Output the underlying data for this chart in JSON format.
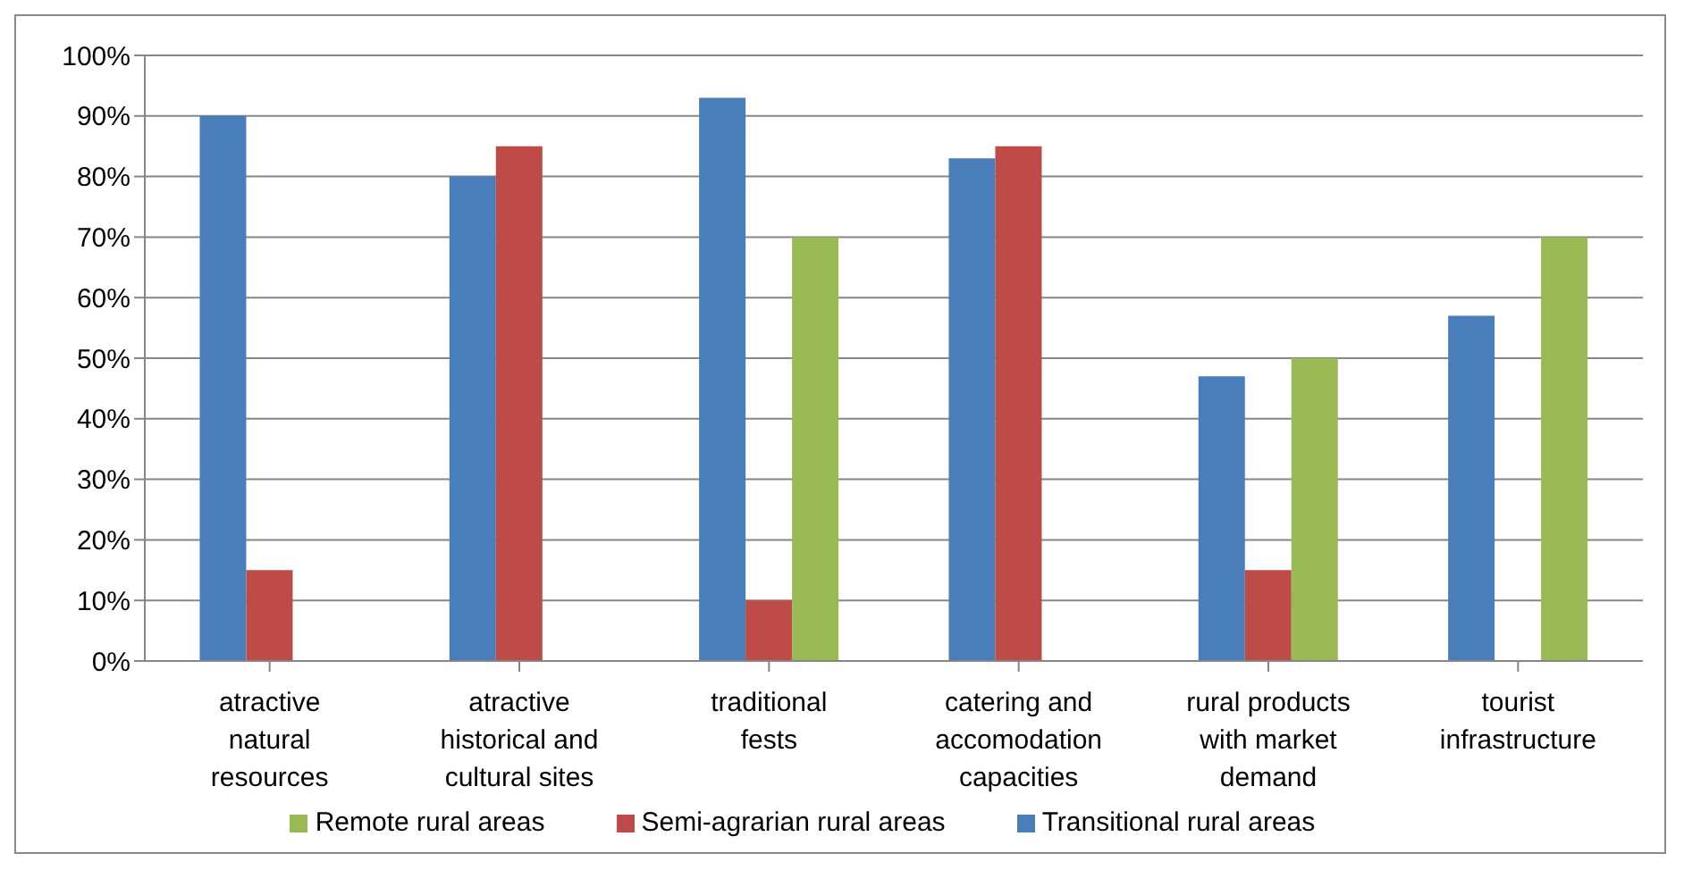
{
  "chart_data": {
    "type": "bar",
    "categories": [
      "atractive natural resources",
      "atractive historical and cultural sites",
      "traditional fests",
      "catering and accomodation capacities",
      "rural products with market demand",
      "tourist infrastructure"
    ],
    "series": [
      {
        "name": "Transitional rural areas",
        "color": "#4a7ebb",
        "values": [
          90,
          80,
          93,
          83,
          47,
          57
        ]
      },
      {
        "name": "Semi-agrarian rural areas",
        "color": "#be4b48",
        "values": [
          15,
          85,
          10,
          85,
          15,
          null
        ]
      },
      {
        "name": "Remote rural areas",
        "color": "#98b954",
        "values": [
          null,
          null,
          70,
          null,
          50,
          70
        ]
      }
    ],
    "ylim": [
      0,
      100
    ],
    "yticks": [
      {
        "value": 0,
        "label": "0%"
      },
      {
        "value": 10,
        "label": "10%"
      },
      {
        "value": 20,
        "label": "20%"
      },
      {
        "value": 30,
        "label": "30%"
      },
      {
        "value": 40,
        "label": "40%"
      },
      {
        "value": 50,
        "label": "50%"
      },
      {
        "value": 60,
        "label": "60%"
      },
      {
        "value": 70,
        "label": "70%"
      },
      {
        "value": 80,
        "label": "80%"
      },
      {
        "value": 90,
        "label": "90%"
      },
      {
        "value": 100,
        "label": "100%"
      }
    ],
    "grid": "y",
    "legend": "bottom"
  }
}
